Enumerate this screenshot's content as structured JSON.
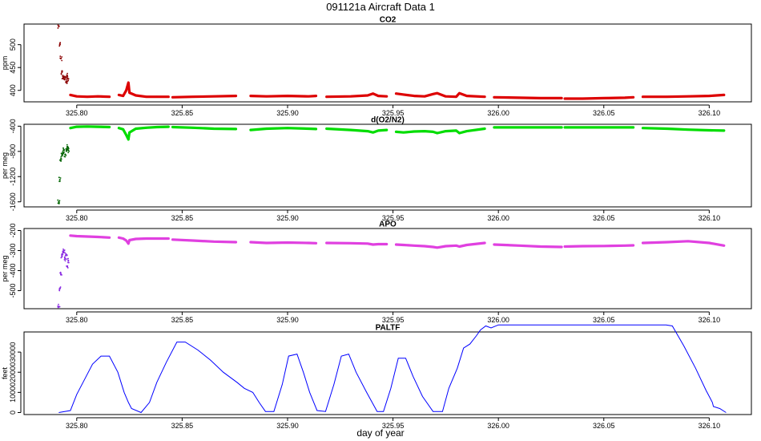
{
  "figure": {
    "title": "091121a   Aircraft Data 1",
    "xlabel": "day of year"
  },
  "chart_data": [
    {
      "type": "scatter",
      "title": "CO2",
      "ylabel": "ppm",
      "xlim": [
        325.775,
        326.12
      ],
      "ylim": [
        375,
        545
      ],
      "xticks": [
        325.8,
        325.85,
        325.9,
        325.95,
        326.0,
        326.05,
        326.1
      ],
      "xtick_labels": [
        "325.80",
        "325.85",
        "325.90",
        "325.95",
        "326.00",
        "326.05",
        "326.10"
      ],
      "yticks": [
        400,
        450,
        500
      ],
      "ytick_labels": [
        "400",
        "450",
        "500"
      ],
      "series": [
        {
          "color": "#8b0000",
          "x": [
            325.7915,
            325.792,
            325.7925,
            325.793,
            325.7935,
            325.794,
            325.7945,
            325.795,
            325.7955,
            325.796
          ],
          "y": [
            540,
            500,
            470,
            440,
            430,
            425,
            428,
            420,
            432,
            425
          ]
        },
        {
          "color": "#dd0000",
          "segments": [
            {
              "x": [
                325.797,
                325.8,
                325.805,
                325.81,
                325.8155
              ],
              "y": [
                390,
                387,
                386,
                387,
                386
              ]
            },
            {
              "x": [
                325.82,
                325.822,
                325.8235,
                325.8245,
                325.825,
                325.828,
                325.833,
                325.838,
                325.8435
              ],
              "y": [
                390,
                388,
                400,
                417,
                395,
                389,
                386,
                386,
                386
              ]
            },
            {
              "x": [
                325.8455,
                325.855,
                325.865,
                325.8755
              ],
              "y": [
                385,
                386,
                387,
                388
              ]
            },
            {
              "x": [
                325.8825,
                325.89,
                325.9,
                325.91,
                325.9135
              ],
              "y": [
                388,
                387,
                388,
                387,
                388
              ]
            },
            {
              "x": [
                325.9185,
                325.93,
                325.938,
                325.9405,
                325.943,
                325.947
              ],
              "y": [
                386,
                387,
                389,
                393,
                388,
                387
              ]
            },
            {
              "x": [
                325.9515,
                325.955,
                325.96,
                325.965,
                325.969,
                325.971,
                325.975,
                325.98,
                325.9815,
                325.985,
                325.9935
              ],
              "y": [
                393,
                391,
                388,
                387,
                392,
                394,
                387,
                386,
                394,
                388,
                386
              ]
            },
            {
              "x": [
                325.998,
                326.01,
                326.02,
                326.03
              ],
              "y": [
                385,
                384,
                383,
                383
              ]
            },
            {
              "x": [
                326.0315,
                326.04,
                326.05,
                326.06,
                326.064
              ],
              "y": [
                382,
                382,
                383,
                384,
                385
              ]
            },
            {
              "x": [
                326.0685,
                326.08,
                326.09,
                326.1,
                326.107
              ],
              "y": [
                386,
                386,
                387,
                388,
                390
              ]
            }
          ]
        }
      ]
    },
    {
      "type": "scatter",
      "title": "d(O2/N2)",
      "ylabel": "per meg",
      "xlim": [
        325.775,
        326.12
      ],
      "ylim": [
        -1680,
        -370
      ],
      "xticks": [
        325.8,
        325.85,
        325.9,
        325.95,
        326.0,
        326.05,
        326.1
      ],
      "xtick_labels": [
        "325.80",
        "325.85",
        "325.90",
        "325.95",
        "326.00",
        "326.05",
        "326.10"
      ],
      "yticks": [
        -1600,
        -1200,
        -800,
        -400
      ],
      "ytick_labels": [
        "-1600",
        "-1200",
        "-800",
        "-400"
      ],
      "series": [
        {
          "color": "#006400",
          "x": [
            325.7915,
            325.792,
            325.7925,
            325.793,
            325.7935,
            325.794,
            325.7945,
            325.795,
            325.7955,
            325.796
          ],
          "y": [
            -1600,
            -1250,
            -950,
            -870,
            -820,
            -780,
            -850,
            -760,
            -730,
            -780
          ]
        },
        {
          "color": "#00dd00",
          "segments": [
            {
              "x": [
                325.797,
                325.8,
                325.805,
                325.81,
                325.8155
              ],
              "y": [
                -430,
                -410,
                -405,
                -410,
                -415
              ]
            },
            {
              "x": [
                325.82,
                325.822,
                325.8235,
                325.8245,
                325.825,
                325.828,
                325.833,
                325.838,
                325.8435
              ],
              "y": [
                -430,
                -450,
                -540,
                -610,
                -500,
                -440,
                -425,
                -415,
                -410
              ]
            },
            {
              "x": [
                325.8455,
                325.855,
                325.865,
                325.8755
              ],
              "y": [
                -415,
                -425,
                -440,
                -445
              ]
            },
            {
              "x": [
                325.8825,
                325.89,
                325.9,
                325.91,
                325.9135
              ],
              "y": [
                -460,
                -440,
                -430,
                -440,
                -445
              ]
            },
            {
              "x": [
                325.9185,
                325.93,
                325.938,
                325.9405,
                325.943,
                325.947
              ],
              "y": [
                -440,
                -460,
                -480,
                -500,
                -470,
                -460
              ]
            },
            {
              "x": [
                325.9515,
                325.955,
                325.96,
                325.965,
                325.969,
                325.971,
                325.975,
                325.98,
                325.9815,
                325.985,
                325.9935
              ],
              "y": [
                -490,
                -500,
                -485,
                -480,
                -490,
                -510,
                -480,
                -470,
                -510,
                -480,
                -440
              ]
            },
            {
              "x": [
                325.998,
                326.01,
                326.02,
                326.03
              ],
              "y": [
                -420,
                -420,
                -420,
                -420
              ]
            },
            {
              "x": [
                326.0315,
                326.04,
                326.05,
                326.06,
                326.064
              ],
              "y": [
                -420,
                -420,
                -420,
                -420,
                -420
              ]
            },
            {
              "x": [
                326.0685,
                326.08,
                326.09,
                326.1,
                326.107
              ],
              "y": [
                -430,
                -440,
                -455,
                -465,
                -470
              ]
            }
          ]
        }
      ]
    },
    {
      "type": "scatter",
      "title": "APO",
      "ylabel": "per meg",
      "xlim": [
        325.775,
        326.12
      ],
      "ylim": [
        -590,
        -190
      ],
      "xticks": [
        325.8,
        325.85,
        325.9,
        325.95,
        326.0,
        326.05,
        326.1
      ],
      "xtick_labels": [
        "325.80",
        "325.85",
        "325.90",
        "325.95",
        "326.00",
        "326.05",
        "326.10"
      ],
      "yticks": [
        -500,
        -400,
        -300,
        -200
      ],
      "ytick_labels": [
        "-500",
        "-400",
        "-300",
        "-200"
      ],
      "series": [
        {
          "color": "#8a2be2",
          "x": [
            325.7915,
            325.792,
            325.7925,
            325.793,
            325.7935,
            325.794,
            325.7945,
            325.795,
            325.7955,
            325.796
          ],
          "y": [
            -580,
            -490,
            -420,
            -330,
            -310,
            -300,
            -340,
            -320,
            -380,
            -350
          ]
        },
        {
          "color": "#e040e0",
          "segments": [
            {
              "x": [
                325.797,
                325.8,
                325.805,
                325.81,
                325.8155
              ],
              "y": [
                -225,
                -228,
                -230,
                -232,
                -235
              ]
            },
            {
              "x": [
                325.82,
                325.822,
                325.8235,
                325.8245,
                325.825,
                325.828,
                325.833,
                325.838,
                325.8435
              ],
              "y": [
                -235,
                -240,
                -250,
                -265,
                -248,
                -242,
                -240,
                -240,
                -240
              ]
            },
            {
              "x": [
                325.8455,
                325.855,
                325.865,
                325.8755
              ],
              "y": [
                -245,
                -250,
                -255,
                -258
              ]
            },
            {
              "x": [
                325.8825,
                325.89,
                325.9,
                325.91,
                325.9135
              ],
              "y": [
                -258,
                -262,
                -260,
                -262,
                -263
              ]
            },
            {
              "x": [
                325.9185,
                325.93,
                325.938,
                325.9405,
                325.943,
                325.947
              ],
              "y": [
                -262,
                -263,
                -265,
                -270,
                -268,
                -268
              ]
            },
            {
              "x": [
                325.9515,
                325.955,
                325.96,
                325.965,
                325.969,
                325.971,
                325.975,
                325.98,
                325.9815,
                325.985,
                325.9935
              ],
              "y": [
                -270,
                -272,
                -275,
                -278,
                -282,
                -285,
                -278,
                -275,
                -280,
                -272,
                -262
              ]
            },
            {
              "x": [
                325.998,
                326.01,
                326.02,
                326.03
              ],
              "y": [
                -270,
                -275,
                -280,
                -282
              ]
            },
            {
              "x": [
                326.0315,
                326.04,
                326.05,
                326.06,
                326.064
              ],
              "y": [
                -280,
                -278,
                -277,
                -275,
                -274
              ]
            },
            {
              "x": [
                326.0685,
                326.08,
                326.09,
                326.1,
                326.107
              ],
              "y": [
                -262,
                -258,
                -253,
                -262,
                -275
              ]
            }
          ]
        }
      ]
    },
    {
      "type": "line",
      "title": "PALTF",
      "ylabel": "feet",
      "xlim": [
        325.775,
        326.12
      ],
      "ylim": [
        -1000,
        40000
      ],
      "xticks": [
        325.8,
        325.85,
        325.9,
        325.95,
        326.0,
        326.05,
        326.1
      ],
      "xtick_labels": [
        "325.80",
        "325.85",
        "325.90",
        "325.95",
        "326.00",
        "326.05",
        "326.10"
      ],
      "yticks": [
        0,
        10000,
        20000,
        30000
      ],
      "ytick_labels": [
        "0",
        "10000",
        "20000",
        "30000"
      ],
      "series": [
        {
          "color": "#0000ff",
          "x": [
            325.7915,
            325.797,
            325.8,
            325.804,
            325.8075,
            325.8115,
            325.8155,
            325.8195,
            325.8225,
            325.8245,
            325.826,
            325.8305,
            325.8345,
            325.838,
            325.8425,
            325.8475,
            325.8515,
            325.8575,
            325.8635,
            325.8695,
            325.876,
            325.8795,
            325.8835,
            325.8865,
            325.8895,
            325.8935,
            325.8975,
            325.9005,
            325.9045,
            325.9075,
            325.9105,
            325.914,
            325.918,
            325.922,
            325.9255,
            325.929,
            325.9325,
            325.9375,
            325.9425,
            325.9455,
            325.949,
            325.9525,
            325.956,
            325.9595,
            325.964,
            325.969,
            325.9735,
            325.9765,
            325.9805,
            325.9835,
            325.9865,
            325.9895,
            325.9915,
            325.994,
            325.9965,
            326.0,
            326.05,
            326.0795,
            326.0825,
            326.088,
            326.0935,
            326.0985,
            326.1005,
            326.1015,
            326.102,
            326.105,
            326.108
          ],
          "y": [
            0,
            1000,
            9000,
            17000,
            24000,
            28000,
            28000,
            20000,
            10000,
            5000,
            2000,
            0,
            5000,
            15000,
            25000,
            35000,
            35000,
            31000,
            26000,
            20000,
            15000,
            12000,
            10000,
            5000,
            500,
            500,
            14000,
            28000,
            29000,
            20000,
            10000,
            1000,
            500,
            14000,
            28000,
            29000,
            20000,
            10000,
            500,
            500,
            12000,
            27000,
            27000,
            18000,
            8000,
            500,
            500,
            12000,
            22000,
            32000,
            34000,
            38000,
            41000,
            43000,
            42000,
            43500,
            43500,
            43500,
            43000,
            33000,
            22000,
            11000,
            7000,
            5000,
            3000,
            2000,
            0
          ]
        }
      ]
    }
  ]
}
